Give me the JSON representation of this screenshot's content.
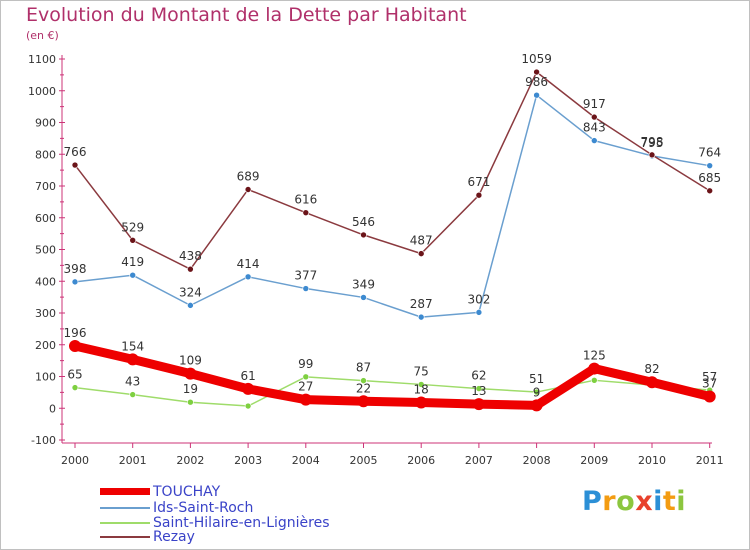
{
  "title": "Evolution du Montant de la Dette par Habitant",
  "subtitle": "(en €)",
  "logo_text": "Proxiti",
  "chart_data": {
    "type": "line",
    "title": "Evolution du Montant de la Dette par Habitant",
    "subtitle": "(en €)",
    "xlabel": "",
    "ylabel": "",
    "categories": [
      "2000",
      "2001",
      "2002",
      "2003",
      "2004",
      "2005",
      "2006",
      "2007",
      "2008",
      "2009",
      "2010",
      "2011"
    ],
    "ylim": [
      -100,
      1100
    ],
    "yticks": [
      -100,
      0,
      100,
      200,
      300,
      400,
      500,
      600,
      700,
      800,
      900,
      1000,
      1100
    ],
    "grid": false,
    "legend_position": "bottom-left",
    "series": [
      {
        "name": "TOUCHAY",
        "color": "#ee0000",
        "emphasis": true,
        "values": [
          196,
          154,
          109,
          61,
          27,
          22,
          18,
          13,
          9,
          125,
          82,
          37
        ]
      },
      {
        "name": "Ids-Saint-Roch",
        "color": "#6a9fcf",
        "marker": "#3d8ad0",
        "values": [
          398,
          419,
          324,
          414,
          377,
          349,
          287,
          302,
          986,
          843,
          795,
          764
        ]
      },
      {
        "name": "Saint-Hilaire-en-Lignières",
        "color": "#9fdc6a",
        "marker": "#7ed040",
        "values": [
          65,
          43,
          19,
          7,
          99,
          87,
          75,
          62,
          51,
          88,
          73,
          57
        ]
      },
      {
        "name": "Rezay",
        "color": "#8b3a3f",
        "marker": "#6b1419",
        "values": [
          766,
          529,
          438,
          689,
          616,
          546,
          487,
          671,
          1059,
          917,
          798,
          685
        ]
      }
    ],
    "data_labels": [
      {
        "series": 0,
        "labels": [
          "196",
          "154",
          "109",
          "61",
          "27",
          "22",
          "18",
          "13",
          "9",
          "125",
          "82",
          "37"
        ]
      },
      {
        "series": 1,
        "labels": [
          "398",
          "419",
          "324",
          "414",
          "377",
          "349",
          "287",
          "302",
          "986",
          "843",
          "795",
          "764"
        ]
      },
      {
        "series": 2,
        "labels": [
          "65",
          "43",
          "19",
          "",
          "99",
          "87",
          "75",
          "62",
          "51",
          "",
          "",
          "57"
        ]
      },
      {
        "series": 3,
        "labels": [
          "766",
          "529",
          "438",
          "689",
          "616",
          "546",
          "487",
          "671",
          "1059",
          "917",
          "798",
          "685"
        ]
      }
    ]
  }
}
